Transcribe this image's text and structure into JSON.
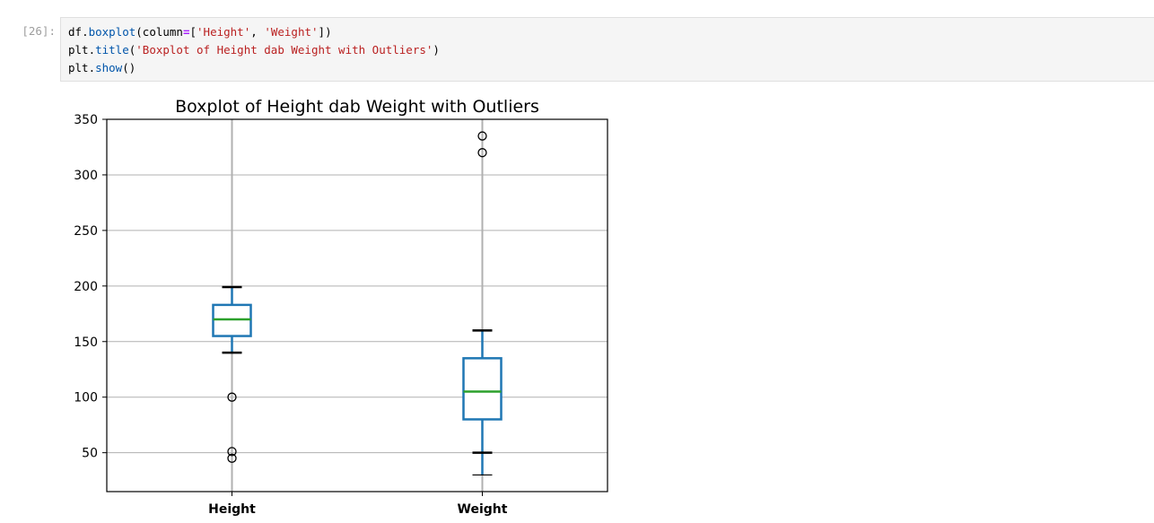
{
  "cell": {
    "prompt": "[26]:",
    "code": {
      "line1": {
        "obj": "df",
        "dot": ".",
        "method": "boxplot",
        "open": "(column",
        "eq": "=",
        "bracket_open": "[",
        "str1": "'Height'",
        "sep": ", ",
        "str2": "'Weight'",
        "bracket_close": "]",
        "close": ")"
      },
      "line2": {
        "obj": "plt",
        "dot": ".",
        "method": "title",
        "open": "(",
        "str": "'Boxplot of Height dab Weight with Outliers'",
        "close": ")"
      },
      "line3": {
        "obj": "plt",
        "dot": ".",
        "method": "show",
        "call": "()"
      }
    }
  },
  "chart_data": {
    "type": "box",
    "title": "Boxplot of Height dab Weight with Outliers",
    "xlabel": "",
    "ylabel": "",
    "ylim": [
      15,
      350
    ],
    "yticks": [
      50,
      100,
      150,
      200,
      250,
      300,
      350
    ],
    "grid": true,
    "categories": [
      "Height",
      "Weight"
    ],
    "boxes": [
      {
        "name": "Height",
        "whisker_low": 140,
        "q1": 155,
        "median": 170,
        "q3": 183,
        "whisker_high": 199,
        "outliers": [
          100,
          51,
          45
        ]
      },
      {
        "name": "Weight",
        "whisker_low": 50,
        "q1": 80,
        "median": 105,
        "q3": 135,
        "whisker_high": 160,
        "outliers": [
          335,
          320
        ],
        "extra_low_cap": 30
      }
    ],
    "colors": {
      "box": "#1f77b4",
      "median": "#2ca02c",
      "whisker": "#1f77b4",
      "cap": "#000000",
      "grid": "#b0b0b0",
      "outlier": "#000000"
    }
  }
}
